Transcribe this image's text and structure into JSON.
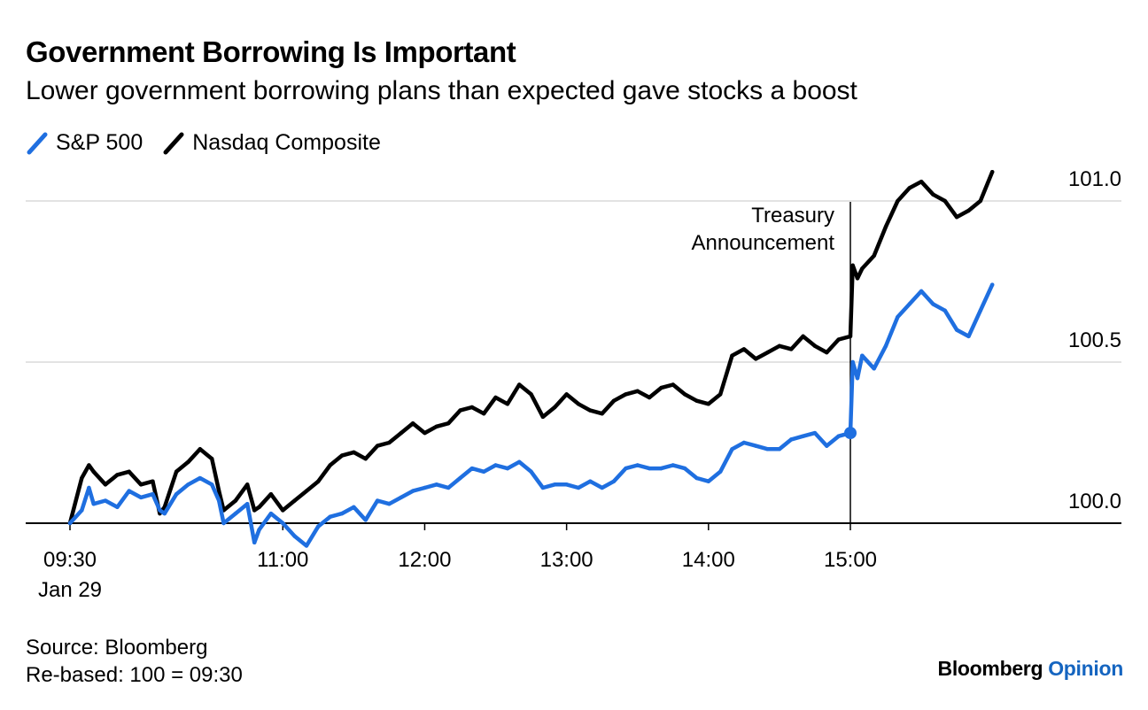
{
  "chart_data": {
    "type": "line",
    "title": "Government Borrowing Is Important",
    "subtitle": "Lower government borrowing plans than expected gave stocks a boost",
    "x_tick_labels": [
      "09:30",
      "11:00",
      "12:00",
      "13:00",
      "14:00",
      "15:00"
    ],
    "x_date_label": "Jan 29",
    "x_range": [
      "09:30",
      "16:00"
    ],
    "y_tick_labels": [
      "100.0",
      "100.5",
      "101.0"
    ],
    "ylim": [
      100.0,
      101.1
    ],
    "y_axis_side": "right",
    "grid": "horizontal",
    "legend_position": "top-left",
    "annotation": {
      "time": "15:00",
      "lines": [
        "Treasury",
        "Announcement"
      ]
    },
    "series": [
      {
        "name": "S&P 500",
        "color": "#1f6fe0",
        "marker_at": "15:00",
        "points": [
          [
            "09:30",
            100.0
          ],
          [
            "09:35",
            100.04
          ],
          [
            "09:38",
            100.11
          ],
          [
            "09:40",
            100.06
          ],
          [
            "09:45",
            100.07
          ],
          [
            "09:50",
            100.05
          ],
          [
            "09:55",
            100.1
          ],
          [
            "10:00",
            100.08
          ],
          [
            "10:05",
            100.09
          ],
          [
            "10:08",
            100.04
          ],
          [
            "10:10",
            100.03
          ],
          [
            "10:15",
            100.09
          ],
          [
            "10:20",
            100.12
          ],
          [
            "10:25",
            100.14
          ],
          [
            "10:30",
            100.12
          ],
          [
            "10:33",
            100.07
          ],
          [
            "10:35",
            100.0
          ],
          [
            "10:40",
            100.03
          ],
          [
            "10:45",
            100.06
          ],
          [
            "10:48",
            99.94
          ],
          [
            "10:50",
            99.98
          ],
          [
            "10:55",
            100.03
          ],
          [
            "11:00",
            100.0
          ],
          [
            "11:05",
            99.96
          ],
          [
            "11:10",
            99.93
          ],
          [
            "11:15",
            99.99
          ],
          [
            "11:20",
            100.02
          ],
          [
            "11:25",
            100.03
          ],
          [
            "11:30",
            100.05
          ],
          [
            "11:35",
            100.01
          ],
          [
            "11:40",
            100.07
          ],
          [
            "11:45",
            100.06
          ],
          [
            "11:50",
            100.08
          ],
          [
            "11:55",
            100.1
          ],
          [
            "12:00",
            100.11
          ],
          [
            "12:05",
            100.12
          ],
          [
            "12:10",
            100.11
          ],
          [
            "12:15",
            100.14
          ],
          [
            "12:20",
            100.17
          ],
          [
            "12:25",
            100.16
          ],
          [
            "12:30",
            100.18
          ],
          [
            "12:35",
            100.17
          ],
          [
            "12:40",
            100.19
          ],
          [
            "12:45",
            100.16
          ],
          [
            "12:50",
            100.11
          ],
          [
            "12:55",
            100.12
          ],
          [
            "13:00",
            100.12
          ],
          [
            "13:05",
            100.11
          ],
          [
            "13:10",
            100.13
          ],
          [
            "13:15",
            100.11
          ],
          [
            "13:20",
            100.13
          ],
          [
            "13:25",
            100.17
          ],
          [
            "13:30",
            100.18
          ],
          [
            "13:35",
            100.17
          ],
          [
            "13:40",
            100.17
          ],
          [
            "13:45",
            100.18
          ],
          [
            "13:50",
            100.17
          ],
          [
            "13:55",
            100.14
          ],
          [
            "14:00",
            100.13
          ],
          [
            "14:05",
            100.16
          ],
          [
            "14:10",
            100.23
          ],
          [
            "14:15",
            100.25
          ],
          [
            "14:20",
            100.24
          ],
          [
            "14:25",
            100.23
          ],
          [
            "14:30",
            100.23
          ],
          [
            "14:35",
            100.26
          ],
          [
            "14:40",
            100.27
          ],
          [
            "14:45",
            100.28
          ],
          [
            "14:50",
            100.24
          ],
          [
            "14:55",
            100.27
          ],
          [
            "15:00",
            100.28
          ],
          [
            "15:01",
            100.5
          ],
          [
            "15:03",
            100.45
          ],
          [
            "15:05",
            100.52
          ],
          [
            "15:10",
            100.48
          ],
          [
            "15:15",
            100.55
          ],
          [
            "15:20",
            100.64
          ],
          [
            "15:25",
            100.68
          ],
          [
            "15:30",
            100.72
          ],
          [
            "15:35",
            100.68
          ],
          [
            "15:40",
            100.66
          ],
          [
            "15:45",
            100.6
          ],
          [
            "15:50",
            100.58
          ],
          [
            "15:55",
            100.66
          ],
          [
            "16:00",
            100.74
          ]
        ]
      },
      {
        "name": "Nasdaq Composite",
        "color": "#000000",
        "points": [
          [
            "09:30",
            100.0
          ],
          [
            "09:35",
            100.14
          ],
          [
            "09:38",
            100.18
          ],
          [
            "09:40",
            100.16
          ],
          [
            "09:45",
            100.12
          ],
          [
            "09:50",
            100.15
          ],
          [
            "09:55",
            100.16
          ],
          [
            "10:00",
            100.12
          ],
          [
            "10:05",
            100.13
          ],
          [
            "10:08",
            100.03
          ],
          [
            "10:10",
            100.05
          ],
          [
            "10:15",
            100.16
          ],
          [
            "10:20",
            100.19
          ],
          [
            "10:25",
            100.23
          ],
          [
            "10:30",
            100.2
          ],
          [
            "10:33",
            100.1
          ],
          [
            "10:35",
            100.04
          ],
          [
            "10:40",
            100.07
          ],
          [
            "10:45",
            100.12
          ],
          [
            "10:48",
            100.04
          ],
          [
            "10:50",
            100.05
          ],
          [
            "10:55",
            100.09
          ],
          [
            "11:00",
            100.04
          ],
          [
            "11:05",
            100.07
          ],
          [
            "11:10",
            100.1
          ],
          [
            "11:15",
            100.13
          ],
          [
            "11:20",
            100.18
          ],
          [
            "11:25",
            100.21
          ],
          [
            "11:30",
            100.22
          ],
          [
            "11:35",
            100.2
          ],
          [
            "11:40",
            100.24
          ],
          [
            "11:45",
            100.25
          ],
          [
            "11:50",
            100.28
          ],
          [
            "11:55",
            100.31
          ],
          [
            "12:00",
            100.28
          ],
          [
            "12:05",
            100.3
          ],
          [
            "12:10",
            100.31
          ],
          [
            "12:15",
            100.35
          ],
          [
            "12:20",
            100.36
          ],
          [
            "12:25",
            100.34
          ],
          [
            "12:30",
            100.39
          ],
          [
            "12:35",
            100.37
          ],
          [
            "12:40",
            100.43
          ],
          [
            "12:45",
            100.4
          ],
          [
            "12:50",
            100.33
          ],
          [
            "12:55",
            100.36
          ],
          [
            "13:00",
            100.4
          ],
          [
            "13:05",
            100.37
          ],
          [
            "13:10",
            100.35
          ],
          [
            "13:15",
            100.34
          ],
          [
            "13:20",
            100.38
          ],
          [
            "13:25",
            100.4
          ],
          [
            "13:30",
            100.41
          ],
          [
            "13:35",
            100.39
          ],
          [
            "13:40",
            100.42
          ],
          [
            "13:45",
            100.43
          ],
          [
            "13:50",
            100.4
          ],
          [
            "13:55",
            100.38
          ],
          [
            "14:00",
            100.37
          ],
          [
            "14:05",
            100.4
          ],
          [
            "14:10",
            100.52
          ],
          [
            "14:15",
            100.54
          ],
          [
            "14:20",
            100.51
          ],
          [
            "14:25",
            100.53
          ],
          [
            "14:30",
            100.55
          ],
          [
            "14:35",
            100.54
          ],
          [
            "14:40",
            100.58
          ],
          [
            "14:45",
            100.55
          ],
          [
            "14:50",
            100.53
          ],
          [
            "14:55",
            100.57
          ],
          [
            "15:00",
            100.58
          ],
          [
            "15:01",
            100.8
          ],
          [
            "15:03",
            100.76
          ],
          [
            "15:05",
            100.79
          ],
          [
            "15:10",
            100.83
          ],
          [
            "15:15",
            100.92
          ],
          [
            "15:20",
            101.0
          ],
          [
            "15:25",
            101.04
          ],
          [
            "15:30",
            101.06
          ],
          [
            "15:35",
            101.02
          ],
          [
            "15:40",
            101.0
          ],
          [
            "15:45",
            100.95
          ],
          [
            "15:50",
            100.97
          ],
          [
            "15:55",
            101.0
          ],
          [
            "16:00",
            101.09
          ]
        ]
      }
    ]
  },
  "footer": {
    "source": "Source: Bloomberg",
    "note": "Re-based: 100 = 09:30"
  },
  "brand": {
    "name": "Bloomberg",
    "section": "Opinion"
  }
}
